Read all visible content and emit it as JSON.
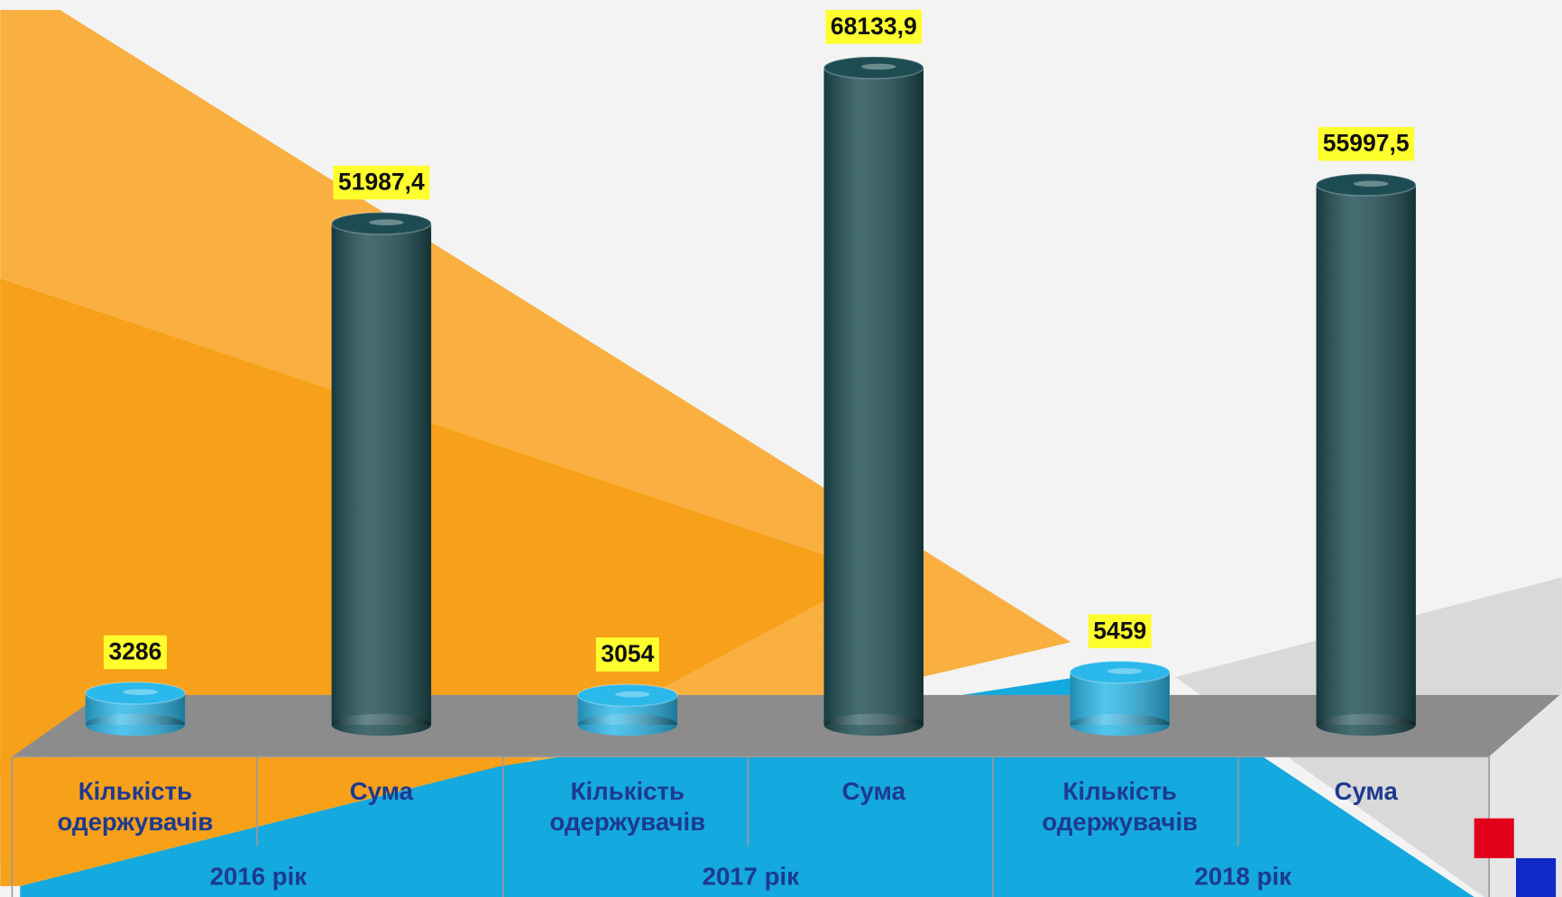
{
  "chart_data": {
    "type": "cylinder",
    "categories": [
      "2016 рік",
      "2017 рік",
      "2018 рік"
    ],
    "series": [
      {
        "name": "Кількість одержувачів",
        "color": "#2bb8ea",
        "values": [
          3286,
          3054,
          5459
        ]
      },
      {
        "name": "Сума",
        "color": "#1d4d53",
        "values": [
          51987.4,
          68133.9,
          55997.5
        ],
        "value_labels": [
          "51987,4",
          "68133,9",
          "55997,5"
        ]
      }
    ]
  }
}
